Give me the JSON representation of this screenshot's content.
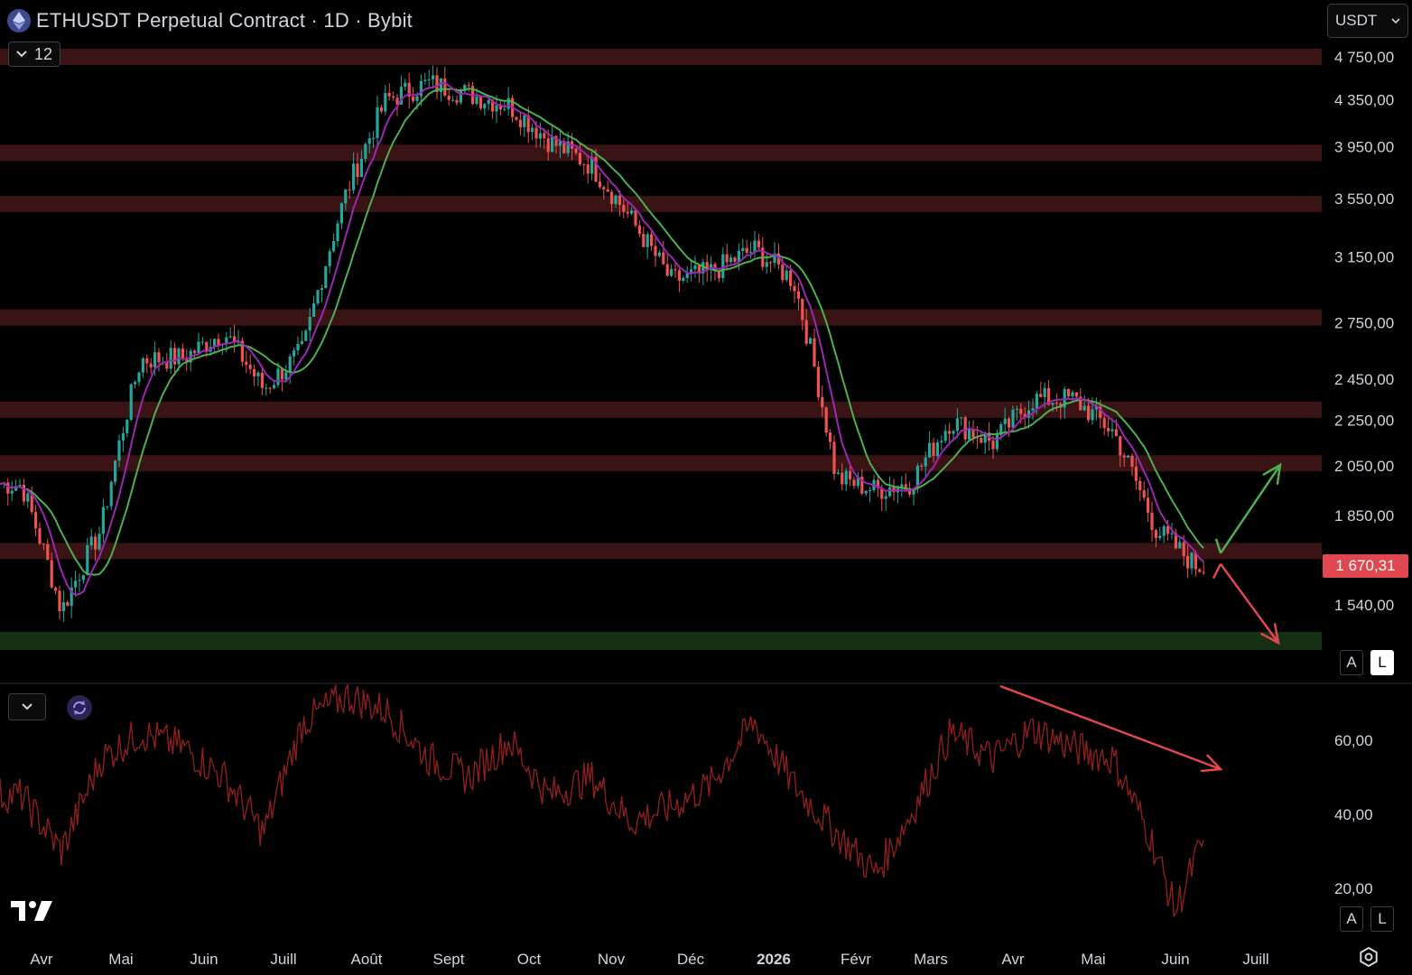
{
  "header": {
    "title": "ETHUSDT Perpetual Contract · 1D · Bybit",
    "indicator_count": "12",
    "currency": "USDT"
  },
  "price": {
    "current_label": "1 670,31",
    "current_value": 1670.31
  },
  "scale_buttons": {
    "auto": "A",
    "log": "L"
  },
  "colors": {
    "background": "#000000",
    "zone": "#3a1414",
    "support_zone": "#163016",
    "up_candle": "#26a69a",
    "down_candle": "#ef5350",
    "ma_fast": "#9c27b0",
    "ma_slow": "#4caf50",
    "rsi_line": "#8b1e1e",
    "up_arrow": "#4caf50",
    "down_arrow": "#e0474f"
  },
  "icons": [
    "ethereum-icon",
    "chevron-down-icon",
    "refresh-icon",
    "tradingview-logo-icon",
    "settings-icon"
  ],
  "chart_data": {
    "type": "candlestick",
    "price_axis_ticks": [
      {
        "label": "4 750,00",
        "value": 4750
      },
      {
        "label": "4 350,00",
        "value": 4350
      },
      {
        "label": "3 950,00",
        "value": 3950
      },
      {
        "label": "3 550,00",
        "value": 3550
      },
      {
        "label": "3 150,00",
        "value": 3150
      },
      {
        "label": "2 750,00",
        "value": 2750
      },
      {
        "label": "2 450,00",
        "value": 2450
      },
      {
        "label": "2 250,00",
        "value": 2250
      },
      {
        "label": "2 050,00",
        "value": 2050
      },
      {
        "label": "1 850,00",
        "value": 1850
      },
      {
        "label": "1 540,00",
        "value": 1540
      }
    ],
    "time_axis_ticks": [
      "Avr",
      "Mai",
      "Juin",
      "Juill",
      "Août",
      "Sept",
      "Oct",
      "Nov",
      "Déc",
      "2026",
      "Févr",
      "Mars",
      "Avr",
      "Mai",
      "Juin",
      "Juill"
    ],
    "zones": [
      4750,
      3900,
      3510,
      2780,
      2300,
      2060,
      1720
    ],
    "support_zone": 1430,
    "price_path": [
      [
        "Avr",
        1970
      ],
      [
        "Avr",
        1520
      ],
      [
        "Mai",
        1800
      ],
      [
        "Mai",
        2550
      ],
      [
        "Juin",
        2560
      ],
      [
        "Juin",
        2700
      ],
      [
        "Juill",
        2400
      ],
      [
        "Juill",
        2600
      ],
      [
        "Août",
        3600
      ],
      [
        "Août",
        4350
      ],
      [
        "Sept",
        4500
      ],
      [
        "Sept",
        4400
      ],
      [
        "Oct",
        4300
      ],
      [
        "Oct",
        4000
      ],
      [
        "Nov",
        3800
      ],
      [
        "Nov",
        3400
      ],
      [
        "Déc",
        3000
      ],
      [
        "Déc",
        3050
      ],
      [
        "2026",
        3200
      ],
      [
        "2026",
        3000
      ],
      [
        "Févr",
        2000
      ],
      [
        "Févr",
        1950
      ],
      [
        "Mars",
        1980
      ],
      [
        "Mars",
        2250
      ],
      [
        "Avr",
        2150
      ],
      [
        "Avr",
        2350
      ],
      [
        "Mai",
        2350
      ],
      [
        "Mai",
        2200
      ],
      [
        "Juin",
        1800
      ],
      [
        "Juin",
        1670
      ]
    ],
    "rsi_axis_ticks": [
      {
        "label": "60,00",
        "value": 60
      },
      {
        "label": "40,00",
        "value": 40
      },
      {
        "label": "20,00",
        "value": 20
      }
    ],
    "rsi_path": [
      [
        "Avr",
        45
      ],
      [
        "Avr",
        30
      ],
      [
        "Mai",
        55
      ],
      [
        "Mai",
        62
      ],
      [
        "Juin",
        58
      ],
      [
        "Juin",
        50
      ],
      [
        "Juill",
        35
      ],
      [
        "Juill",
        65
      ],
      [
        "Août",
        72
      ],
      [
        "Août",
        68
      ],
      [
        "Sept",
        55
      ],
      [
        "Sept",
        50
      ],
      [
        "Oct",
        60
      ],
      [
        "Oct",
        45
      ],
      [
        "Nov",
        50
      ],
      [
        "Nov",
        38
      ],
      [
        "Déc",
        42
      ],
      [
        "Déc",
        48
      ],
      [
        "2026",
        65
      ],
      [
        "2026",
        48
      ],
      [
        "Févr",
        35
      ],
      [
        "Févr",
        24
      ],
      [
        "Mars",
        40
      ],
      [
        "Mars",
        62
      ],
      [
        "Avr",
        55
      ],
      [
        "Avr",
        63
      ],
      [
        "Mai",
        58
      ],
      [
        "Mai",
        55
      ],
      [
        "Juin",
        35
      ],
      [
        "Juin",
        14
      ],
      [
        "Juin",
        32
      ]
    ],
    "annotations": [
      "up-arrow",
      "down-arrow",
      "rsi-downtrend-arrow"
    ]
  }
}
